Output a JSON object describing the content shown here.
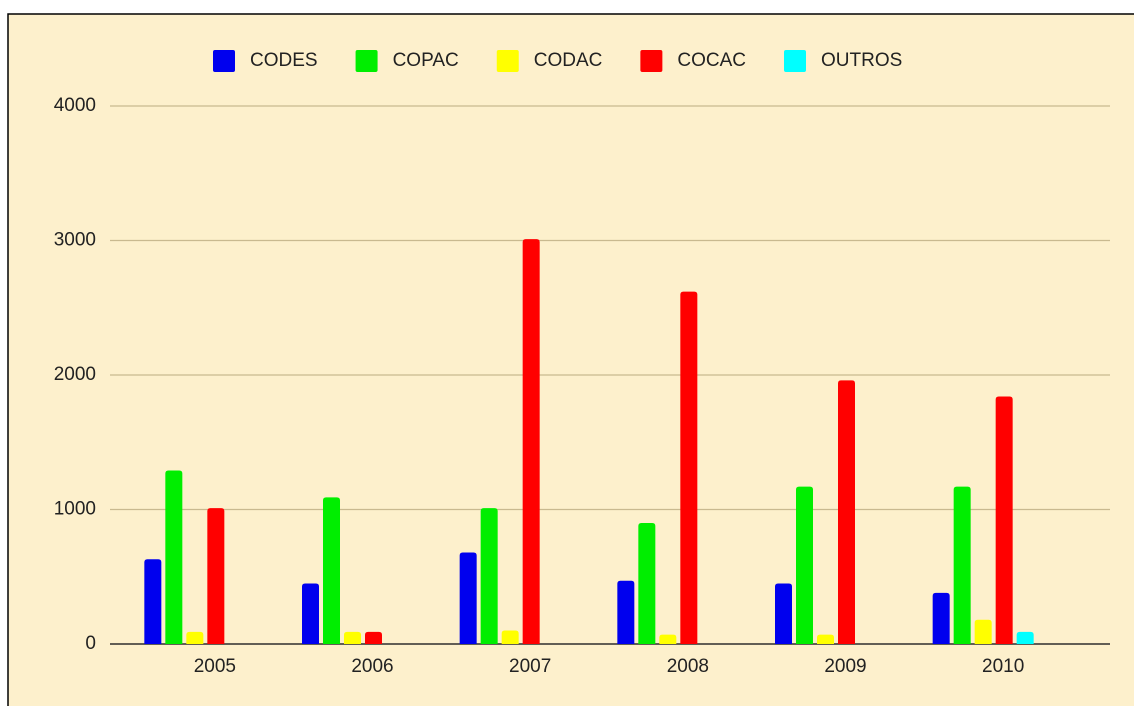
{
  "chart_data": {
    "type": "bar",
    "categories": [
      "2005",
      "2006",
      "2007",
      "2008",
      "2009",
      "2010"
    ],
    "series": [
      {
        "name": "CODES",
        "color": "#0000ee",
        "values": [
          630,
          450,
          680,
          470,
          450,
          380
        ]
      },
      {
        "name": "COPAC",
        "color": "#00ee00",
        "values": [
          1290,
          1090,
          1010,
          900,
          1170,
          1170
        ]
      },
      {
        "name": "CODAC",
        "color": "#ffff00",
        "values": [
          90,
          90,
          100,
          70,
          70,
          180
        ]
      },
      {
        "name": "COCAC",
        "color": "#ff0000",
        "values": [
          1010,
          90,
          3010,
          2620,
          1960,
          1840
        ]
      },
      {
        "name": "OUTROS",
        "color": "#00ffff",
        "values": [
          0,
          0,
          0,
          0,
          0,
          90
        ]
      }
    ],
    "ylim": [
      0,
      4000
    ],
    "yticks": [
      0,
      1000,
      2000,
      3000,
      4000
    ],
    "grid": true,
    "legend": "top"
  }
}
